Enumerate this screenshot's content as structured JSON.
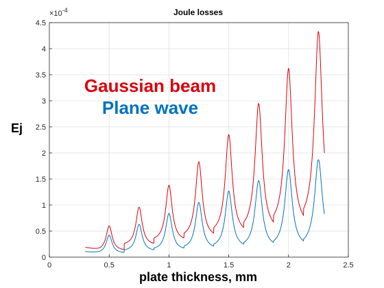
{
  "chart_data": {
    "type": "line",
    "title": "Joule losses",
    "xlabel": "plate thickness, mm",
    "ylabel": "Ej",
    "xlim": [
      0,
      2.5
    ],
    "ylim": [
      0,
      4.5
    ],
    "x_ticks": [
      0,
      0.5,
      1,
      1.5,
      2,
      2.5
    ],
    "x_tick_labels": [
      "0",
      "0.5",
      "1",
      "1.5",
      "2",
      "2.5"
    ],
    "y_ticks": [
      0,
      0.5,
      1,
      1.5,
      2,
      2.5,
      3,
      3.5,
      4,
      4.5
    ],
    "y_tick_labels": [
      "0",
      "0.5",
      "1",
      "1.5",
      "2",
      "2.5",
      "3",
      "3.5",
      "4",
      "4.5"
    ],
    "y_exponent_label": "×10",
    "y_exponent_power": "-4",
    "grid": true,
    "x_range_data": [
      0.3,
      2.3
    ],
    "series": [
      {
        "name": "Gaussian beam",
        "color": "#d9000d",
        "baseline_start": 0.18,
        "peaks": [
          {
            "x": 0.5,
            "y": 0.6,
            "min_before": 0.12
          },
          {
            "x": 0.75,
            "y": 0.96,
            "min_before": 0.22
          },
          {
            "x": 1.0,
            "y": 1.38,
            "min_before": 0.3
          },
          {
            "x": 1.25,
            "y": 1.83,
            "min_before": 0.36
          },
          {
            "x": 1.5,
            "y": 2.35,
            "min_before": 0.43
          },
          {
            "x": 1.75,
            "y": 2.95,
            "min_before": 0.48
          },
          {
            "x": 2.0,
            "y": 3.62,
            "min_before": 0.55
          },
          {
            "x": 2.25,
            "y": 4.33,
            "min_before": 0.6
          }
        ],
        "end_value": 1.7
      },
      {
        "name": "Plane wave",
        "color": "#0072bd",
        "baseline_start": 0.1,
        "peaks": [
          {
            "x": 0.5,
            "y": 0.42,
            "min_before": 0.07
          },
          {
            "x": 0.75,
            "y": 0.63,
            "min_before": 0.11
          },
          {
            "x": 1.0,
            "y": 0.84,
            "min_before": 0.13
          },
          {
            "x": 1.25,
            "y": 1.05,
            "min_before": 0.15
          },
          {
            "x": 1.5,
            "y": 1.27,
            "min_before": 0.17
          },
          {
            "x": 1.75,
            "y": 1.47,
            "min_before": 0.18
          },
          {
            "x": 2.0,
            "y": 1.68,
            "min_before": 0.19
          },
          {
            "x": 2.25,
            "y": 1.87,
            "min_before": 0.2
          }
        ],
        "end_value": 0.78
      }
    ]
  }
}
